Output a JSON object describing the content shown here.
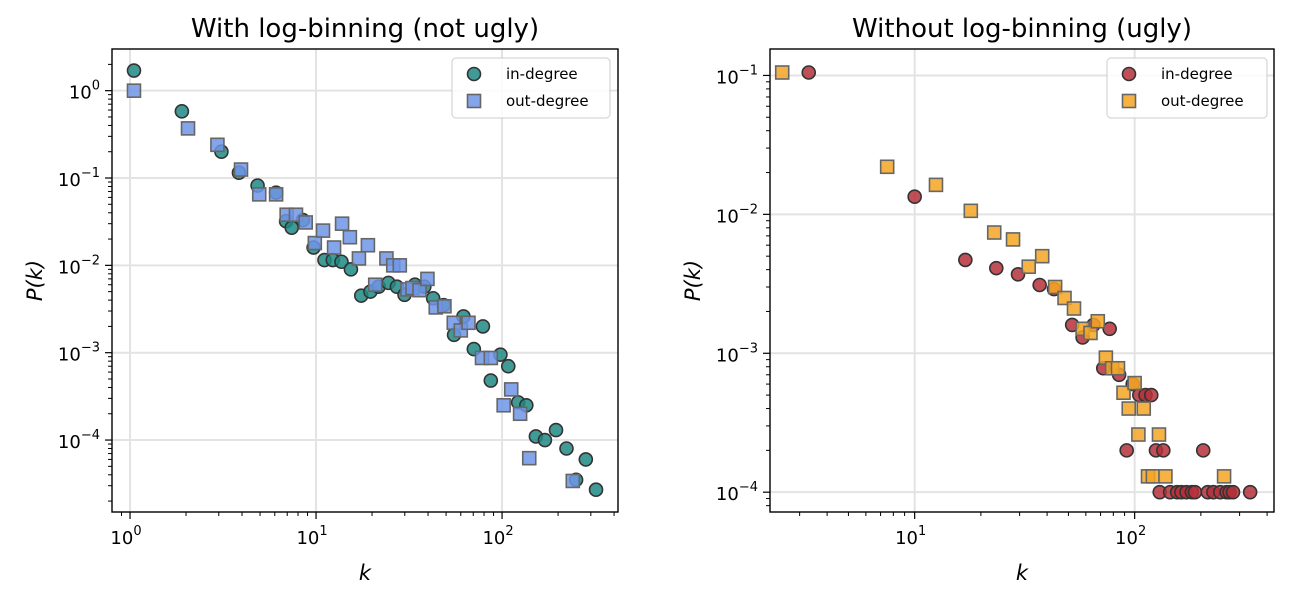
{
  "chart_data": [
    {
      "type": "scatter",
      "title": "With log-binning (not ugly)",
      "xlabel": "k",
      "ylabel": "P(k)",
      "xscale": "log",
      "yscale": "log",
      "xlim": [
        0.8,
        420
      ],
      "ylim": [
        1.5e-05,
        3.0
      ],
      "xticks": [
        {
          "base": "10",
          "exp": "0",
          "value": 1
        },
        {
          "base": "10",
          "exp": "1",
          "value": 10
        },
        {
          "base": "10",
          "exp": "2",
          "value": 100
        }
      ],
      "yticks": [
        {
          "base": "10",
          "exp": "0",
          "value": 1
        },
        {
          "base": "10",
          "exp": "−1",
          "value": 0.1
        },
        {
          "base": "10",
          "exp": "−2",
          "value": 0.01
        },
        {
          "base": "10",
          "exp": "−3",
          "value": 0.001
        },
        {
          "base": "10",
          "exp": "−4",
          "value": 0.0001
        }
      ],
      "grid": true,
      "legend_position": "top-right",
      "series": [
        {
          "name": "in-degree",
          "marker": "circle",
          "color": "#1f8a84",
          "points": [
            [
              1.05,
              1.7
            ],
            [
              1.9,
              0.58
            ],
            [
              3.1,
              0.2
            ],
            [
              3.85,
              0.115
            ],
            [
              4.85,
              0.082
            ],
            [
              6.1,
              0.068
            ],
            [
              6.9,
              0.032
            ],
            [
              7.4,
              0.027
            ],
            [
              8.5,
              0.033
            ],
            [
              9.7,
              0.016
            ],
            [
              11.1,
              0.0115
            ],
            [
              12.3,
              0.0115
            ],
            [
              13.7,
              0.011
            ],
            [
              15.4,
              0.009
            ],
            [
              17.5,
              0.0045
            ],
            [
              19.6,
              0.005
            ],
            [
              21.7,
              0.0057
            ],
            [
              24.5,
              0.0063
            ],
            [
              27.2,
              0.0057
            ],
            [
              29.9,
              0.0046
            ],
            [
              34.0,
              0.006
            ],
            [
              38.2,
              0.0057
            ],
            [
              42.6,
              0.0042
            ],
            [
              48.5,
              0.0035
            ],
            [
              55.2,
              0.0016
            ],
            [
              62.0,
              0.0026
            ],
            [
              70.5,
              0.0011
            ],
            [
              78.9,
              0.002
            ],
            [
              87.0,
              0.00048
            ],
            [
              98.0,
              0.00095
            ],
            [
              108.0,
              0.0007
            ],
            [
              122.0,
              0.00027
            ],
            [
              135.0,
              0.00025
            ],
            [
              152.0,
              0.00011
            ],
            [
              170.0,
              0.0001
            ],
            [
              195.0,
              0.00013
            ],
            [
              222.0,
              8e-05
            ],
            [
              250.0,
              3.5e-05
            ],
            [
              282.0,
              6e-05
            ],
            [
              320.0,
              2.7e-05
            ]
          ]
        },
        {
          "name": "out-degree",
          "marker": "square",
          "color": "#6f95e6",
          "points": [
            [
              1.05,
              1.0
            ],
            [
              2.05,
              0.37
            ],
            [
              2.95,
              0.24
            ],
            [
              3.95,
              0.125
            ],
            [
              4.95,
              0.065
            ],
            [
              6.1,
              0.065
            ],
            [
              6.95,
              0.038
            ],
            [
              7.8,
              0.038
            ],
            [
              8.8,
              0.031
            ],
            [
              9.85,
              0.018
            ],
            [
              10.9,
              0.025
            ],
            [
              12.5,
              0.016
            ],
            [
              13.8,
              0.03
            ],
            [
              15.2,
              0.021
            ],
            [
              17.0,
              0.012
            ],
            [
              19.0,
              0.017
            ],
            [
              20.8,
              0.006
            ],
            [
              23.9,
              0.012
            ],
            [
              26.0,
              0.01
            ],
            [
              28.2,
              0.01
            ],
            [
              31.0,
              0.0053
            ],
            [
              33.0,
              0.0055
            ],
            [
              36.0,
              0.0052
            ],
            [
              39.7,
              0.007
            ],
            [
              44.0,
              0.0033
            ],
            [
              49.0,
              0.0034
            ],
            [
              55.0,
              0.0022
            ],
            [
              60.0,
              0.0018
            ],
            [
              66.0,
              0.0022
            ],
            [
              78.0,
              0.00087
            ],
            [
              87.0,
              0.00087
            ],
            [
              102.0,
              0.00025
            ],
            [
              112.0,
              0.00038
            ],
            [
              125.0,
              0.0002
            ],
            [
              140.0,
              6.2e-05
            ],
            [
              240.0,
              3.4e-05
            ]
          ]
        }
      ]
    },
    {
      "type": "scatter",
      "title": "Without log-binning (ugly)",
      "xlabel": "k",
      "ylabel": "P(k)",
      "xscale": "log",
      "yscale": "log",
      "xlim": [
        2.2,
        430
      ],
      "ylim": [
        7.2e-05,
        0.155
      ],
      "xticks": [
        {
          "base": "10",
          "exp": "1",
          "value": 10
        },
        {
          "base": "10",
          "exp": "2",
          "value": 100
        }
      ],
      "yticks": [
        {
          "base": "10",
          "exp": "−1",
          "value": 0.1
        },
        {
          "base": "10",
          "exp": "−2",
          "value": 0.01
        },
        {
          "base": "10",
          "exp": "−3",
          "value": 0.001
        },
        {
          "base": "10",
          "exp": "−4",
          "value": 0.0001
        }
      ],
      "grid": true,
      "legend_position": "top-right",
      "series": [
        {
          "name": "in-degree",
          "marker": "circle",
          "color": "#b5303a",
          "points": [
            [
              3.3,
              0.105
            ],
            [
              10.0,
              0.0134
            ],
            [
              17.0,
              0.0047
            ],
            [
              23.5,
              0.0041
            ],
            [
              29.5,
              0.0037
            ],
            [
              37.0,
              0.0031
            ],
            [
              43.0,
              0.0029
            ],
            [
              52.0,
              0.0016
            ],
            [
              58.0,
              0.0013
            ],
            [
              65.0,
              0.0016
            ],
            [
              72.0,
              0.00078
            ],
            [
              77.0,
              0.0015
            ],
            [
              85.0,
              0.0007
            ],
            [
              92.0,
              0.0002
            ],
            [
              98.0,
              0.0006
            ],
            [
              105.0,
              0.0005
            ],
            [
              112.0,
              0.0005
            ],
            [
              119.0,
              0.0005
            ],
            [
              125.0,
              0.0002
            ],
            [
              135.0,
              0.0002
            ],
            [
              130.0,
              0.0001
            ],
            [
              145.0,
              0.0001
            ],
            [
              156.0,
              0.0001
            ],
            [
              163.0,
              0.0001
            ],
            [
              172.0,
              0.0001
            ],
            [
              182.0,
              0.0001
            ],
            [
              188.0,
              0.0001
            ],
            [
              205.0,
              0.0002
            ],
            [
              215.0,
              0.0001
            ],
            [
              228.0,
              0.0001
            ],
            [
              245.0,
              0.0001
            ],
            [
              262.0,
              0.0001
            ],
            [
              270.0,
              0.0001
            ],
            [
              280.0,
              0.0001
            ],
            [
              335.0,
              0.0001
            ]
          ]
        },
        {
          "name": "out-degree",
          "marker": "square",
          "color": "#f5a623",
          "points": [
            [
              2.5,
              0.105
            ],
            [
              7.5,
              0.022
            ],
            [
              12.5,
              0.0163
            ],
            [
              18.0,
              0.0106
            ],
            [
              23.0,
              0.0074
            ],
            [
              28.0,
              0.0066
            ],
            [
              33.0,
              0.0042
            ],
            [
              38.0,
              0.005
            ],
            [
              43.5,
              0.003
            ],
            [
              48.0,
              0.0025
            ],
            [
              53.0,
              0.0021
            ],
            [
              58.0,
              0.0015
            ],
            [
              63.0,
              0.0014
            ],
            [
              68.0,
              0.0017
            ],
            [
              74.0,
              0.00093
            ],
            [
              79.0,
              0.00078
            ],
            [
              84.0,
              0.00078
            ],
            [
              89.0,
              0.00052
            ],
            [
              94.0,
              0.0004
            ],
            [
              100.0,
              0.00061
            ],
            [
              104.0,
              0.00026
            ],
            [
              110.0,
              0.0004
            ],
            [
              115.0,
              0.00013
            ],
            [
              121.0,
              0.00013
            ],
            [
              129.0,
              0.00026
            ],
            [
              138.0,
              0.00013
            ],
            [
              255.0,
              0.00013
            ]
          ]
        }
      ]
    }
  ]
}
